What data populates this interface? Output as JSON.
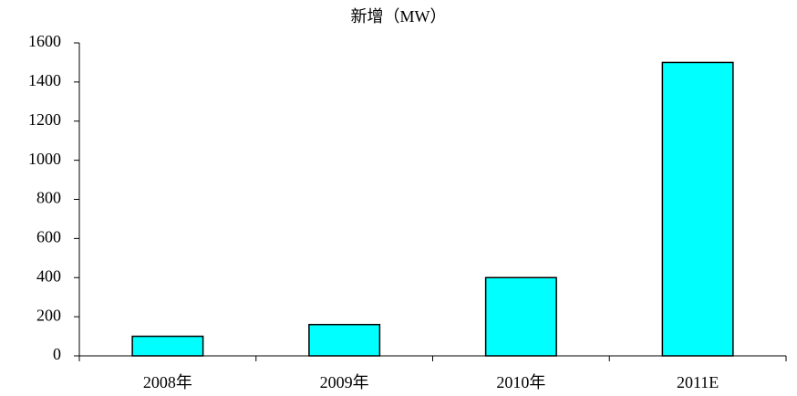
{
  "chart_data": {
    "type": "bar",
    "title": "新增（MW）",
    "categories": [
      "2008年",
      "2009年",
      "2010年",
      "2011E"
    ],
    "values": [
      100,
      160,
      400,
      1500
    ],
    "color": "#00ffff",
    "ylim": [
      0,
      1600
    ],
    "yticks": [
      0,
      200,
      400,
      600,
      800,
      1000,
      1200,
      1400,
      1600
    ],
    "grid": false
  }
}
